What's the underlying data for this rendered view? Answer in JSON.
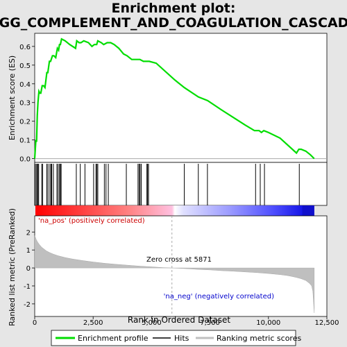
{
  "title_line1": "Enrichment plot:",
  "title_line2": "KEGG_COMPLEMENT_AND_COAGULATION_CASCADES",
  "colors": {
    "background": "#e6e6e6",
    "plot_bg": "#ffffff",
    "enrichment_line": "#00dd00",
    "hit_line": "#000000",
    "metric_fill": "#bfbfbf",
    "pos_label": "#cc0000",
    "neg_label": "#0000cc",
    "zero_line": "#aaaaaa"
  },
  "legend": {
    "enrichment_profile": "Enrichment profile",
    "hits": "Hits",
    "ranking_metric_scores": "Ranking metric scores"
  },
  "chart_data": {
    "type": "line",
    "top_panel": {
      "ylabel": "Enrichment score (ES)",
      "ylim": [
        -0.02,
        0.67
      ],
      "yticks": [
        "0.0",
        "0.1",
        "0.2",
        "0.3",
        "0.4",
        "0.5",
        "0.6"
      ],
      "ytick_values": [
        0.0,
        0.1,
        0.2,
        0.3,
        0.4,
        0.5,
        0.6
      ],
      "series": {
        "x": [
          0,
          50,
          80,
          110,
          140,
          180,
          220,
          260,
          320,
          380,
          440,
          520,
          560,
          630,
          680,
          760,
          820,
          900,
          970,
          1020,
          1060,
          1100,
          1150,
          1300,
          1500,
          1750,
          1800,
          1900,
          1980,
          2100,
          2300,
          2450,
          2550,
          2650,
          2700,
          2850,
          2950,
          3100,
          3250,
          3400,
          3600,
          3800,
          3950,
          4150,
          4300,
          4500,
          4650,
          4800,
          4900,
          5200,
          6000,
          6400,
          7000,
          7400,
          8000,
          8500,
          9000,
          9400,
          9600,
          9700,
          9800,
          10000,
          10500,
          11200,
          11300,
          11400,
          11600,
          11800,
          11960
        ],
        "y": [
          0.0,
          0.1,
          0.09,
          0.23,
          0.3,
          0.36,
          0.35,
          0.35,
          0.39,
          0.39,
          0.38,
          0.46,
          0.46,
          0.52,
          0.52,
          0.55,
          0.55,
          0.54,
          0.59,
          0.58,
          0.61,
          0.61,
          0.64,
          0.63,
          0.61,
          0.59,
          0.63,
          0.62,
          0.62,
          0.63,
          0.62,
          0.6,
          0.61,
          0.61,
          0.63,
          0.62,
          0.61,
          0.62,
          0.62,
          0.61,
          0.59,
          0.56,
          0.55,
          0.53,
          0.53,
          0.53,
          0.52,
          0.52,
          0.52,
          0.51,
          0.42,
          0.38,
          0.33,
          0.31,
          0.26,
          0.22,
          0.18,
          0.15,
          0.15,
          0.14,
          0.15,
          0.14,
          0.11,
          0.03,
          0.05,
          0.05,
          0.04,
          0.02,
          0.0
        ]
      }
    },
    "hits": [
      10,
      60,
      100,
      140,
      170,
      300,
      340,
      520,
      570,
      650,
      700,
      730,
      800,
      950,
      1000,
      1060,
      1100,
      1130,
      1780,
      1950,
      2150,
      2520,
      2620,
      2660,
      2700,
      2980,
      3050,
      3150,
      3920,
      4420,
      4470,
      4510,
      4560,
      4800,
      4830,
      4870,
      6400,
      7000,
      7390,
      9450,
      9650,
      9830,
      11320
    ],
    "rank_bar": {
      "pos_color": "#ff0000",
      "mid_color": "#ffffff",
      "neg_color": "#0000ff"
    },
    "bottom_panel": {
      "ylabel": "Ranked list metric (PreRanked)",
      "xlabel": "Rank in Ordered Dataset",
      "ylim": [
        -2.7,
        2.9
      ],
      "yticks": [
        "-2",
        "-1",
        "0",
        "1",
        "2"
      ],
      "ytick_values": [
        -2,
        -1,
        0,
        1,
        2
      ],
      "metric_x": [
        0,
        20,
        60,
        120,
        200,
        300,
        400,
        500,
        650,
        800,
        1000,
        1300,
        1600,
        2000,
        2500,
        3000,
        3500,
        4000,
        4500,
        5000,
        5500,
        5871,
        6500,
        7000,
        7500,
        8000,
        8500,
        9000,
        9500,
        10000,
        10500,
        10800,
        11000,
        11200,
        11400,
        11600,
        11750,
        11850,
        11900,
        11930,
        11960
      ],
      "metric_y": [
        1.8,
        1.75,
        1.6,
        1.45,
        1.3,
        1.15,
        1.05,
        0.95,
        0.85,
        0.77,
        0.68,
        0.58,
        0.5,
        0.42,
        0.33,
        0.26,
        0.2,
        0.15,
        0.1,
        0.06,
        0.02,
        0.0,
        -0.04,
        -0.08,
        -0.11,
        -0.15,
        -0.18,
        -0.22,
        -0.26,
        -0.31,
        -0.37,
        -0.42,
        -0.47,
        -0.53,
        -0.6,
        -0.7,
        -0.85,
        -1.0,
        -1.3,
        -1.9,
        -2.5
      ],
      "pos_label": "'na_pos' (positively correlated)",
      "neg_label": "'na_neg' (negatively correlated)",
      "zero_cross_label": "Zero cross at 5871",
      "zero_cross_x": 5871
    },
    "xlim": [
      0,
      12500
    ],
    "xticks": [
      "0",
      "2,500",
      "5,000",
      "7,500",
      "10,000",
      "12,500"
    ],
    "xtick_values": [
      0,
      2500,
      5000,
      7500,
      10000,
      12500
    ],
    "n_genes": 11960
  }
}
